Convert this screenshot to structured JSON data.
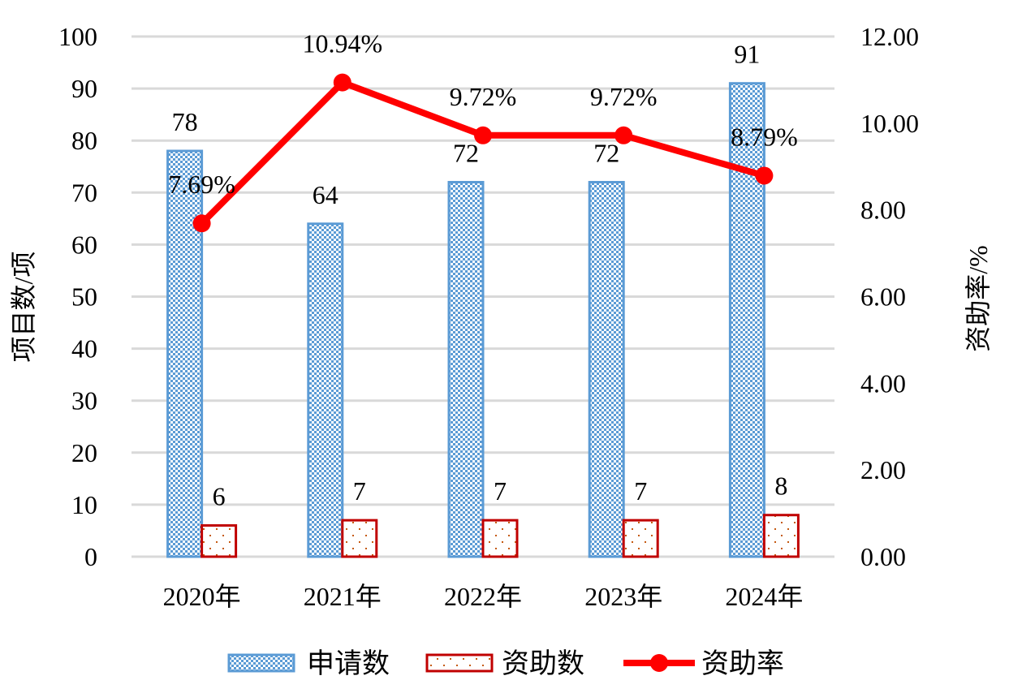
{
  "chart_data": {
    "type": "bar",
    "categories": [
      "2020年",
      "2021年",
      "2022年",
      "2023年",
      "2024年"
    ],
    "series": [
      {
        "name": "申请数",
        "kind": "bar",
        "axis": "left",
        "values": [
          78,
          64,
          72,
          72,
          91
        ],
        "color": "#5B9BD5",
        "pattern": "dense-dots"
      },
      {
        "name": "资助数",
        "kind": "bar",
        "axis": "left",
        "values": [
          6,
          7,
          7,
          7,
          8
        ],
        "color": "#C00000",
        "pattern": "sparse-dots"
      },
      {
        "name": "资助率",
        "kind": "line",
        "axis": "right",
        "values": [
          7.69,
          10.94,
          9.72,
          9.72,
          8.79
        ],
        "labels": [
          "7.69%",
          "10.94%",
          "9.72%",
          "9.72%",
          "8.79%"
        ],
        "color": "#FF0000"
      }
    ],
    "ylabel": "项目数/项",
    "y2label": "资助率/%",
    "ylim": [
      0,
      100
    ],
    "y2lim": [
      0,
      12
    ],
    "yticks": [
      "0",
      "10",
      "20",
      "30",
      "40",
      "50",
      "60",
      "70",
      "80",
      "90",
      "100"
    ],
    "y2ticks": [
      "0.00",
      "2.00",
      "4.00",
      "6.00",
      "8.00",
      "10.00",
      "12.00"
    ],
    "grid": true,
    "legend": "bottom"
  }
}
